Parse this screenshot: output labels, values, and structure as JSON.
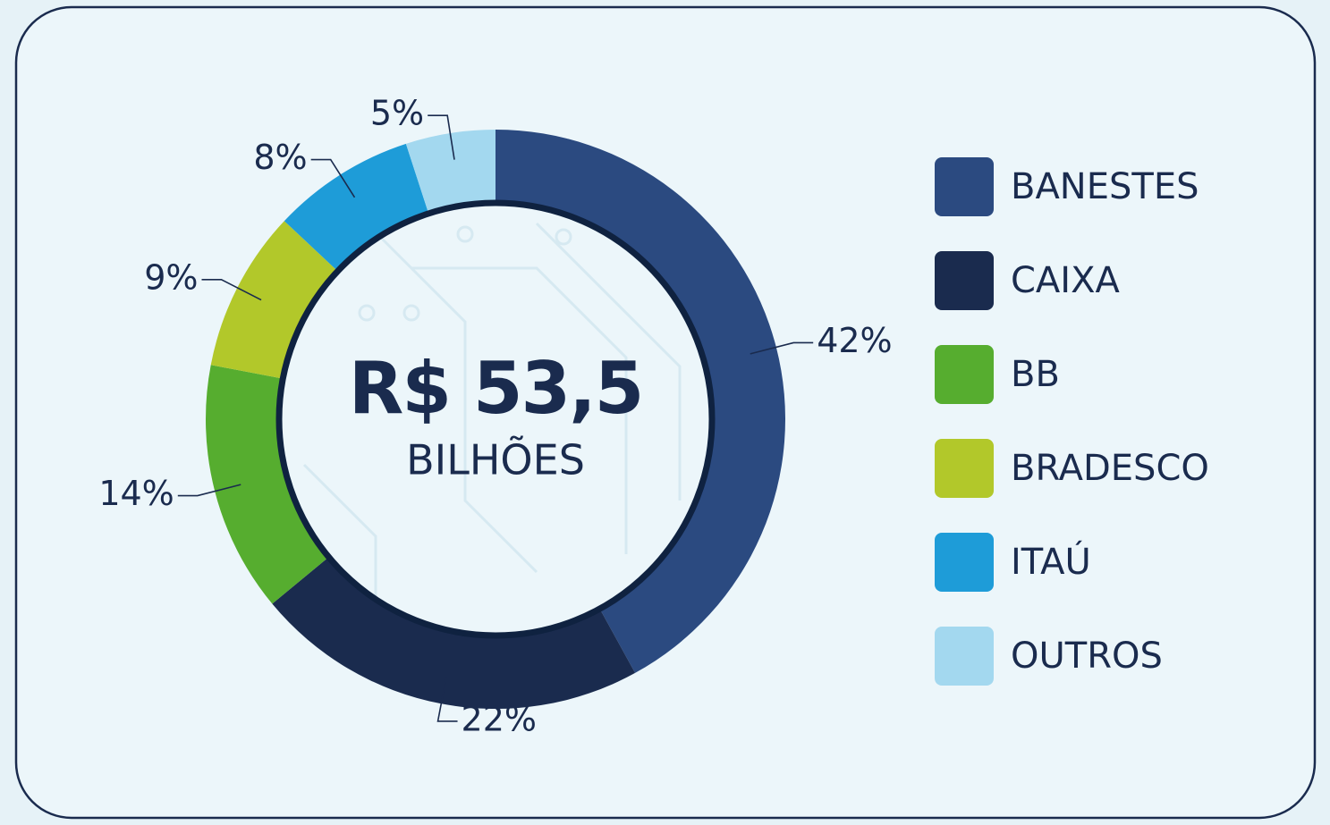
{
  "chart_data": {
    "type": "donut",
    "center_label": "R$ 53,5",
    "center_sublabel": "BILHÕES",
    "categories": [
      "BANESTES",
      "CAIXA",
      "BB",
      "BRADESCO",
      "ITAÚ",
      "OUTROS"
    ],
    "values": [
      42,
      22,
      14,
      9,
      8,
      5
    ],
    "value_labels": [
      "42%",
      "22%",
      "14%",
      "9%",
      "8%",
      "5%"
    ],
    "colors": [
      "#2b4a80",
      "#1a2b4e",
      "#56ad2f",
      "#b2c82a",
      "#1e9cd8",
      "#a3d8ef"
    ],
    "legend": "right"
  }
}
